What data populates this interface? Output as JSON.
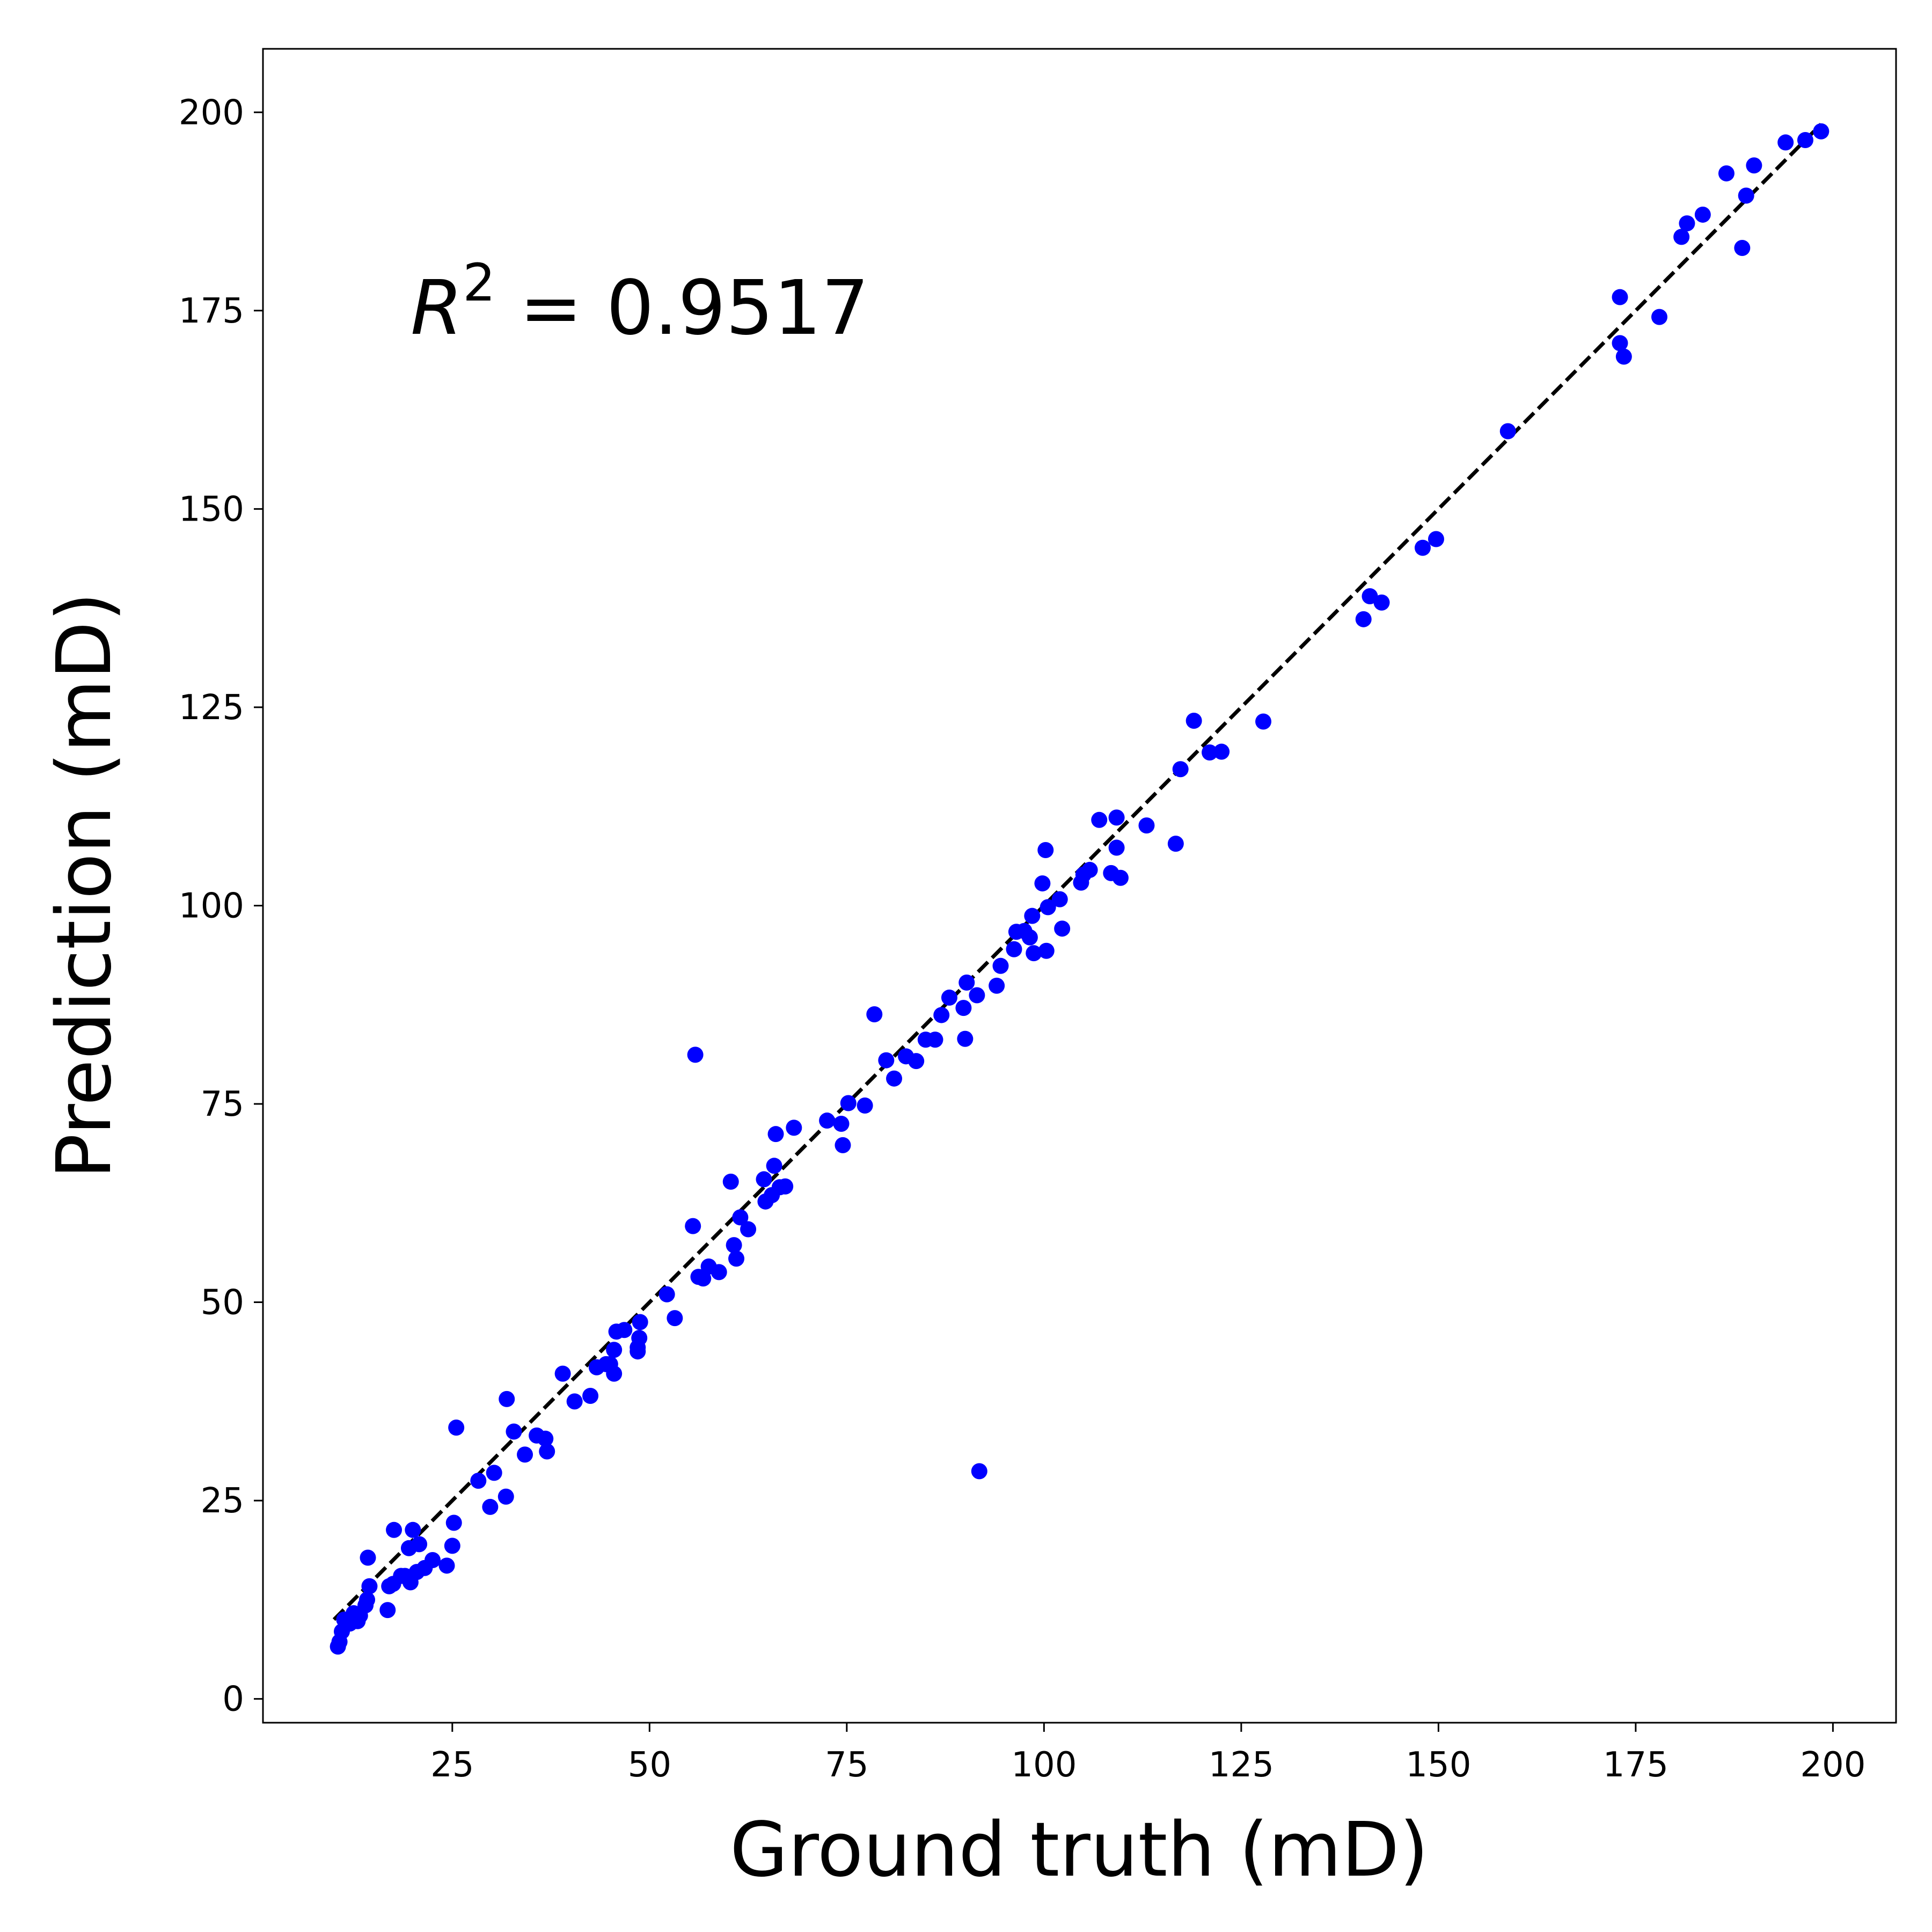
{
  "chart_data": {
    "type": "scatter",
    "xlabel": "Ground truth (mD)",
    "ylabel": "Prediction (mD)",
    "annotation": {
      "prefix": "R",
      "superscript": "2",
      "suffix": " = 0.9517"
    },
    "xlim": [
      1,
      208
    ],
    "ylim": [
      -3,
      208
    ],
    "xticks": [
      25,
      50,
      75,
      100,
      125,
      150,
      175,
      200
    ],
    "yticks": [
      0,
      25,
      50,
      75,
      100,
      125,
      150,
      175,
      200
    ],
    "grid": false,
    "colors": {
      "points": "#0000ff",
      "reference_line": "#000000"
    },
    "reference_line": {
      "style": "dashed",
      "from": [
        10,
        10
      ],
      "to": [
        198.5,
        198.5
      ]
    },
    "points": [
      [
        10.5,
        6.6
      ],
      [
        10.7,
        7.2
      ],
      [
        11,
        8.5
      ],
      [
        11.3,
        10
      ],
      [
        12,
        9.5
      ],
      [
        12.5,
        10.8
      ],
      [
        13,
        9.8
      ],
      [
        13.3,
        10.5
      ],
      [
        14,
        11.8
      ],
      [
        14.2,
        12.5
      ],
      [
        14.5,
        14.2
      ],
      [
        14.3,
        17.8
      ],
      [
        16.8,
        11.2
      ],
      [
        17,
        14.2
      ],
      [
        17.5,
        14.5
      ],
      [
        17.6,
        21.3
      ],
      [
        18.5,
        15.5
      ],
      [
        19,
        15.5
      ],
      [
        19.5,
        19
      ],
      [
        19.7,
        14.7
      ],
      [
        20,
        21.3
      ],
      [
        20.5,
        16
      ],
      [
        20.8,
        19.5
      ],
      [
        21.5,
        16.5
      ],
      [
        22.5,
        17.5
      ],
      [
        24.3,
        16.8
      ],
      [
        25,
        19.3
      ],
      [
        25.2,
        22.2
      ],
      [
        25.5,
        34.2
      ],
      [
        28.3,
        27.5
      ],
      [
        29.8,
        24.2
      ],
      [
        30.3,
        28.5
      ],
      [
        31.8,
        25.5
      ],
      [
        31.9,
        37.8
      ],
      [
        32.8,
        33.7
      ],
      [
        34.2,
        30.8
      ],
      [
        35.7,
        33.2
      ],
      [
        36.8,
        32.8
      ],
      [
        37,
        31.2
      ],
      [
        39,
        41
      ],
      [
        40.5,
        37.5
      ],
      [
        42.5,
        38.2
      ],
      [
        43.3,
        41.8
      ],
      [
        44.5,
        42.2
      ],
      [
        45,
        42.2
      ],
      [
        45.5,
        41
      ],
      [
        45.5,
        44
      ],
      [
        45.8,
        46.3
      ],
      [
        46.8,
        46.5
      ],
      [
        48.5,
        43.8
      ],
      [
        48.5,
        44.3
      ],
      [
        48.7,
        45.5
      ],
      [
        48.8,
        47.5
      ],
      [
        52.2,
        51
      ],
      [
        53.2,
        48
      ],
      [
        55.5,
        59.6
      ],
      [
        55.8,
        81.2
      ],
      [
        56.2,
        53.2
      ],
      [
        56.8,
        53
      ],
      [
        57.5,
        54.5
      ],
      [
        58.8,
        53.8
      ],
      [
        60.3,
        65.2
      ],
      [
        60.7,
        57.2
      ],
      [
        61,
        55.5
      ],
      [
        61.5,
        60.7
      ],
      [
        62.5,
        59.2
      ],
      [
        64.5,
        65.5
      ],
      [
        64.7,
        62.7
      ],
      [
        65.5,
        63.5
      ],
      [
        65.8,
        67.2
      ],
      [
        66,
        71.2
      ],
      [
        66.5,
        64.5
      ],
      [
        67.2,
        64.6
      ],
      [
        68.3,
        72
      ],
      [
        72.5,
        72.9
      ],
      [
        74.3,
        72.5
      ],
      [
        74.5,
        69.8
      ],
      [
        75.2,
        75.1
      ],
      [
        77.3,
        74.8
      ],
      [
        78.5,
        86.3
      ],
      [
        80,
        80.5
      ],
      [
        81,
        78.2
      ],
      [
        82.5,
        81
      ],
      [
        83.8,
        80.4
      ],
      [
        85,
        83.1
      ],
      [
        86.2,
        83.1
      ],
      [
        87,
        86.2
      ],
      [
        88,
        88.4
      ],
      [
        89.8,
        87.1
      ],
      [
        90,
        83.2
      ],
      [
        90.2,
        90.3
      ],
      [
        91.5,
        88.7
      ],
      [
        91.8,
        28.7
      ],
      [
        94,
        89.9
      ],
      [
        94.5,
        92.4
      ],
      [
        96.2,
        94.5
      ],
      [
        96.5,
        96.7
      ],
      [
        97.5,
        96.8
      ],
      [
        98.2,
        96
      ],
      [
        98.5,
        98.7
      ],
      [
        98.7,
        94
      ],
      [
        99.8,
        102.8
      ],
      [
        100.2,
        107
      ],
      [
        100.3,
        94.3
      ],
      [
        100.5,
        99.8
      ],
      [
        102,
        100.8
      ],
      [
        102.3,
        97.1
      ],
      [
        104.7,
        102.9
      ],
      [
        105,
        103.9
      ],
      [
        105.8,
        104.5
      ],
      [
        107,
        110.8
      ],
      [
        108.5,
        104.1
      ],
      [
        109.2,
        111.1
      ],
      [
        109.2,
        107.3
      ],
      [
        109.7,
        103.5
      ],
      [
        113,
        110.1
      ],
      [
        116.7,
        107.8
      ],
      [
        117.3,
        117.2
      ],
      [
        119,
        123.3
      ],
      [
        121,
        119.3
      ],
      [
        122.5,
        119.4
      ],
      [
        127.8,
        123.2
      ],
      [
        140.5,
        136.1
      ],
      [
        141.3,
        139
      ],
      [
        142.8,
        138.2
      ],
      [
        148,
        145.1
      ],
      [
        149.7,
        146.2
      ],
      [
        158.8,
        159.8
      ],
      [
        173,
        176.7
      ],
      [
        173,
        170.9
      ],
      [
        173.5,
        169.2
      ],
      [
        178,
        174.2
      ],
      [
        180.8,
        184.3
      ],
      [
        181.5,
        186
      ],
      [
        183.5,
        187.1
      ],
      [
        186.5,
        192.3
      ],
      [
        188.5,
        182.9
      ],
      [
        189,
        189.5
      ],
      [
        190,
        193.3
      ],
      [
        194,
        196.2
      ],
      [
        196.5,
        196.5
      ],
      [
        198.5,
        197.6
      ]
    ]
  }
}
